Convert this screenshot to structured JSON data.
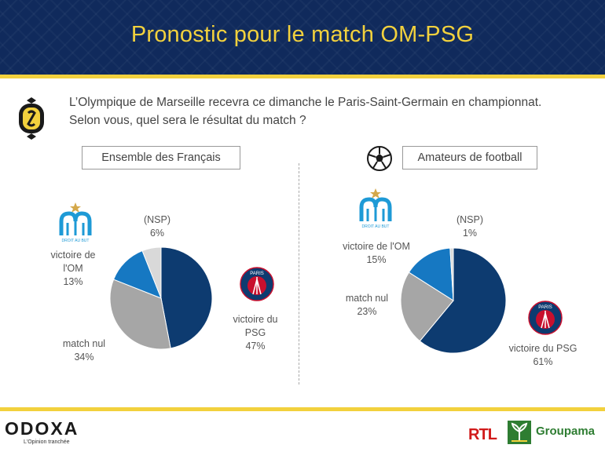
{
  "title": "Pronostic pour le match OM-PSG",
  "question": {
    "line1": "L’Olympique de Marseille recevra ce dimanche le Paris-Saint-Germain en championnat.",
    "line2": "Selon vous, quel sera le résultat du match ?"
  },
  "om_logo_text": "DROIT AU BUT",
  "psg_logo_text": "PARIS",
  "footer": {
    "brand": "ODOXA",
    "tagline": "L'Opinion tranchée",
    "rtl": "RTL",
    "groupama": "Groupama"
  },
  "colors": {
    "psg": "#0d3b70",
    "om": "#1678c2",
    "nul": "#a6a6a6",
    "nsp": "#d9d9d9",
    "accent": "#f2d13d",
    "header": "#102a5c"
  },
  "chart_data": [
    {
      "type": "pie",
      "title": "Ensemble des Français",
      "slices": [
        {
          "label_line1": "victoire du",
          "label_line2": "PSG",
          "value": 47,
          "pct": "47%"
        },
        {
          "label_line1": "match nul",
          "label_line2": "",
          "value": 34,
          "pct": "34%"
        },
        {
          "label_line1": "victoire de",
          "label_line2": "l'OM",
          "value": 13,
          "pct": "13%"
        },
        {
          "label_line1": "(NSP)",
          "label_line2": "",
          "value": 6,
          "pct": "6%"
        }
      ]
    },
    {
      "type": "pie",
      "title": "Amateurs de football",
      "slices": [
        {
          "label_line1": "victoire du PSG",
          "label_line2": "",
          "value": 61,
          "pct": "61%"
        },
        {
          "label_line1": "match nul",
          "label_line2": "",
          "value": 23,
          "pct": "23%"
        },
        {
          "label_line1": "victoire de l'OM",
          "label_line2": "",
          "value": 15,
          "pct": "15%"
        },
        {
          "label_line1": "(NSP)",
          "label_line2": "",
          "value": 1,
          "pct": "1%"
        }
      ]
    }
  ]
}
